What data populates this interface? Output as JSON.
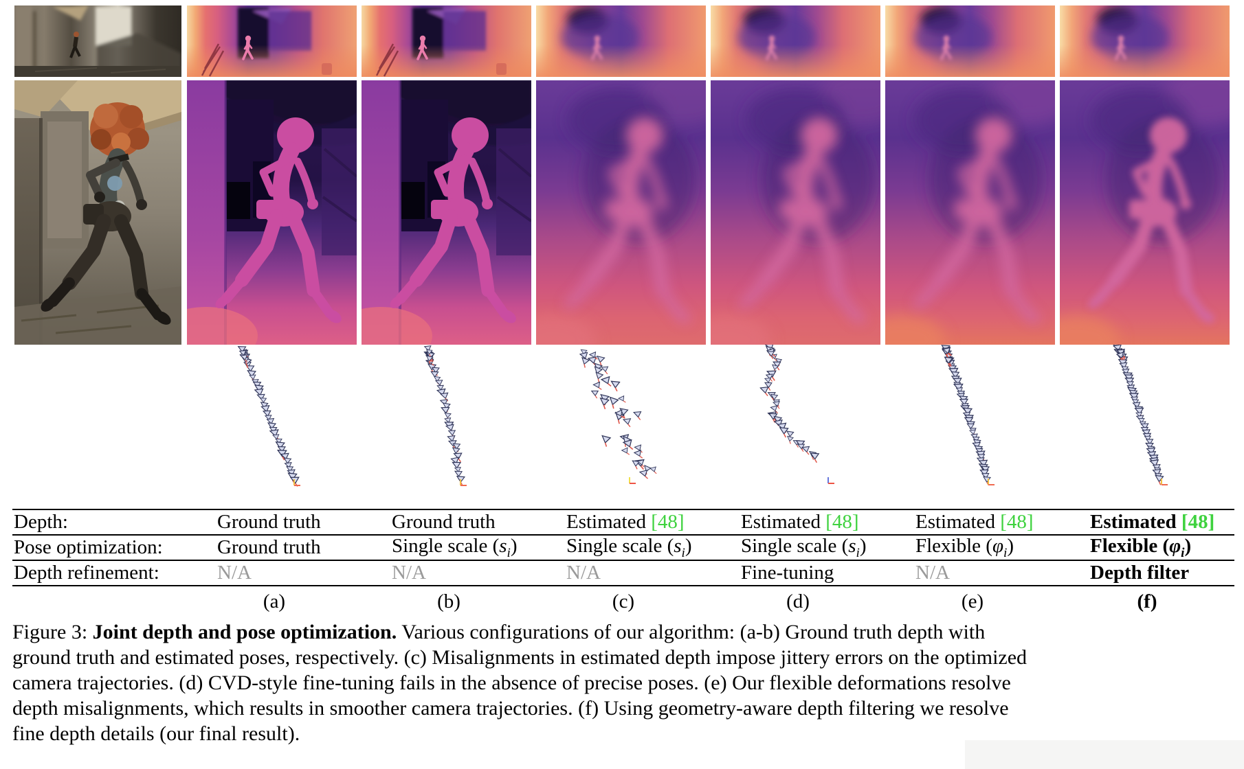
{
  "accent": {
    "cite_green": "#3fd23f",
    "na_gray": "#9a9a9a"
  },
  "figure_grid": {
    "rgb_row1_alt": "rgb-input-frame-alley-scene",
    "rgb_row2_alt": "rgb-input-close-up-running-character",
    "colormap": "magma-like (cream-orange-pink-purple-navy)",
    "columns": [
      {
        "id": "a",
        "row1_depth": "ground-truth-depth",
        "row2_depth": "ground-truth-depth-closeup",
        "trajectory": "smooth-line"
      },
      {
        "id": "b",
        "row1_depth": "ground-truth-depth",
        "row2_depth": "ground-truth-depth-closeup",
        "trajectory": "smooth-line-minor-wobble"
      },
      {
        "id": "c",
        "row1_depth": "estimated-depth",
        "row2_depth": "estimated-depth-closeup",
        "trajectory": "scattered-jittery"
      },
      {
        "id": "d",
        "row1_depth": "estimated-depth",
        "row2_depth": "estimated-depth-closeup",
        "trajectory": "wavy-partially-jittery"
      },
      {
        "id": "e",
        "row1_depth": "estimated-depth",
        "row2_depth": "estimated-depth-closeup",
        "trajectory": "smooth-dense-line"
      },
      {
        "id": "f",
        "row1_depth": "estimated-depth-filtered",
        "row2_depth": "estimated-depth-filtered-closeup",
        "trajectory": "smooth-dense-line"
      }
    ]
  },
  "table": {
    "math_sub": "i",
    "rows": [
      {
        "label": "Depth:",
        "cells": [
          {
            "text": "Ground truth"
          },
          {
            "text": "Ground truth"
          },
          {
            "text": "Estimated",
            "cite": "[48]"
          },
          {
            "text": "Estimated",
            "cite": "[48]"
          },
          {
            "text": "Estimated",
            "cite": "[48]"
          },
          {
            "text": "Estimated",
            "cite": "[48]",
            "bold": true
          }
        ]
      },
      {
        "label": "Pose optimization:",
        "cells": [
          {
            "text": "Ground truth"
          },
          {
            "text": "Single scale",
            "math": "s"
          },
          {
            "text": "Single scale",
            "math": "s"
          },
          {
            "text": "Single scale",
            "math": "s"
          },
          {
            "text": "Flexible",
            "math": "φ"
          },
          {
            "text": "Flexible",
            "math": "φ",
            "bold": true
          }
        ]
      },
      {
        "label": "Depth refinement:",
        "cells": [
          {
            "text": "N/A",
            "na": true
          },
          {
            "text": "N/A",
            "na": true
          },
          {
            "text": "N/A",
            "na": true
          },
          {
            "text": "Fine-tuning"
          },
          {
            "text": "N/A",
            "na": true
          },
          {
            "text": "Depth filter",
            "bold": true
          }
        ]
      }
    ],
    "column_letters": [
      {
        "text": "(a)"
      },
      {
        "text": "(b)"
      },
      {
        "text": "(c)"
      },
      {
        "text": "(d)"
      },
      {
        "text": "(e)"
      },
      {
        "text": "(f)",
        "bold": true
      }
    ]
  },
  "caption": {
    "lines": [
      {
        "runs": [
          {
            "t": "Figure 3: "
          },
          {
            "t": "Joint depth and pose optimization.",
            "bold": true
          },
          {
            "t": " Various configurations of our algorithm: (a-b) Ground truth depth with"
          }
        ]
      },
      {
        "runs": [
          {
            "t": "ground truth and estimated poses, respectively. (c) Misalignments in estimated depth impose jittery errors on the optimized"
          }
        ]
      },
      {
        "runs": [
          {
            "t": "camera trajectories. (d) CVD-style fine-tuning fails in the absence of precise poses. (e) Our flexible deformations resolve"
          }
        ]
      },
      {
        "runs": [
          {
            "t": "depth misalignments, which results in smoother camera trajectories. (f) Using geometry-aware depth filtering we resolve"
          }
        ]
      },
      {
        "runs": [
          {
            "t": "fine depth details (our final result)."
          }
        ]
      }
    ]
  }
}
